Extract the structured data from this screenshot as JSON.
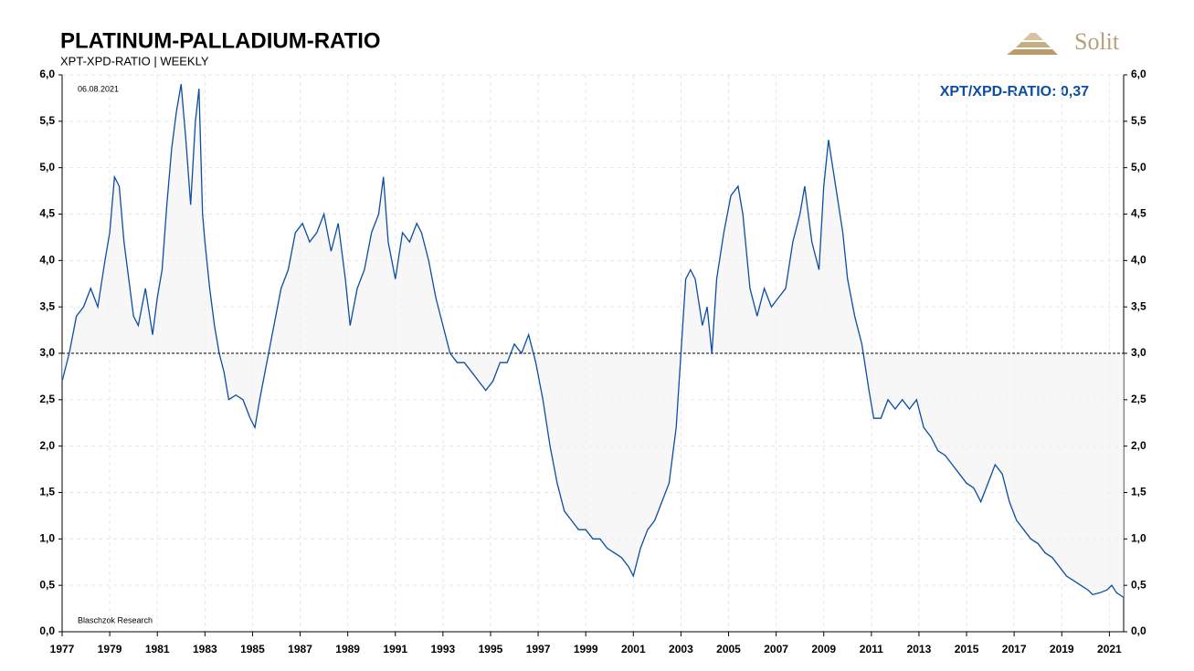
{
  "chart_data": {
    "type": "line",
    "title": "PLATINUM-PALLADIUM-RATIO",
    "subtitle": "XPT-XPD-RATIO | WEEKLY",
    "date_note": "06.08.2021",
    "source": "Blaschzok  Research",
    "last_value_label": "XPT/XPD-RATIO: 0,37",
    "logo": "Solit",
    "reference_line": 3,
    "color": "#0b4ea2",
    "grid": true,
    "xlim": [
      1977,
      2021.6
    ],
    "xticks": [
      1977,
      1979,
      1981,
      1983,
      1985,
      1987,
      1989,
      1991,
      1993,
      1995,
      1997,
      1999,
      2001,
      2003,
      2005,
      2007,
      2009,
      2011,
      2013,
      2015,
      2017,
      2019,
      2021
    ],
    "ylim": [
      0,
      6
    ],
    "yticks": [
      {
        "value": 0,
        "label": "0,0"
      },
      {
        "value": 0.5,
        "label": "0,5"
      },
      {
        "value": 1,
        "label": "1,0"
      },
      {
        "value": 1.5,
        "label": "1,5"
      },
      {
        "value": 2,
        "label": "2,0"
      },
      {
        "value": 2.5,
        "label": "2,5"
      },
      {
        "value": 3,
        "label": "3,0"
      },
      {
        "value": 3.5,
        "label": "3,5"
      },
      {
        "value": 4,
        "label": "4,0"
      },
      {
        "value": 4.5,
        "label": "4,5"
      },
      {
        "value": 5,
        "label": "5,0"
      },
      {
        "value": 5.5,
        "label": "5,5"
      },
      {
        "value": 6,
        "label": "6,0"
      }
    ],
    "x": [
      1977.0,
      1977.3,
      1977.6,
      1977.9,
      1978.2,
      1978.5,
      1978.8,
      1979.0,
      1979.2,
      1979.4,
      1979.6,
      1979.8,
      1980.0,
      1980.2,
      1980.5,
      1980.8,
      1981.0,
      1981.2,
      1981.4,
      1981.6,
      1981.8,
      1982.0,
      1982.2,
      1982.4,
      1982.6,
      1982.75,
      1982.9,
      1983.0,
      1983.2,
      1983.4,
      1983.6,
      1983.8,
      1984.0,
      1984.3,
      1984.6,
      1984.9,
      1985.1,
      1985.3,
      1985.6,
      1985.9,
      1986.2,
      1986.5,
      1986.8,
      1987.1,
      1987.4,
      1987.7,
      1988.0,
      1988.3,
      1988.6,
      1988.9,
      1989.1,
      1989.4,
      1989.7,
      1990.0,
      1990.3,
      1990.5,
      1990.7,
      1991.0,
      1991.3,
      1991.6,
      1991.9,
      1992.1,
      1992.4,
      1992.7,
      1993.0,
      1993.3,
      1993.6,
      1993.9,
      1994.2,
      1994.5,
      1994.8,
      1995.1,
      1995.4,
      1995.7,
      1996.0,
      1996.3,
      1996.6,
      1996.9,
      1997.2,
      1997.5,
      1997.8,
      1998.1,
      1998.4,
      1998.7,
      1999.0,
      1999.3,
      1999.6,
      1999.9,
      2000.2,
      2000.5,
      2000.8,
      2001.0,
      2001.3,
      2001.6,
      2001.9,
      2002.2,
      2002.5,
      2002.8,
      2003.0,
      2003.2,
      2003.4,
      2003.6,
      2003.9,
      2004.1,
      2004.3,
      2004.5,
      2004.8,
      2005.1,
      2005.4,
      2005.6,
      2005.9,
      2006.2,
      2006.5,
      2006.8,
      2007.1,
      2007.4,
      2007.7,
      2008.0,
      2008.2,
      2008.5,
      2008.8,
      2009.0,
      2009.2,
      2009.5,
      2009.8,
      2010.0,
      2010.3,
      2010.6,
      2010.9,
      2011.1,
      2011.4,
      2011.7,
      2012.0,
      2012.3,
      2012.6,
      2012.9,
      2013.2,
      2013.5,
      2013.8,
      2014.1,
      2014.4,
      2014.7,
      2015.0,
      2015.3,
      2015.6,
      2015.9,
      2016.2,
      2016.5,
      2016.8,
      2017.1,
      2017.4,
      2017.7,
      2018.0,
      2018.3,
      2018.6,
      2018.9,
      2019.2,
      2019.5,
      2019.8,
      2020.1,
      2020.3,
      2020.6,
      2020.9,
      2021.1,
      2021.3,
      2021.6
    ],
    "series": [
      {
        "name": "XPT/XPD-RATIO",
        "color": "#0b4ea2",
        "values": [
          2.7,
          3.0,
          3.4,
          3.5,
          3.7,
          3.5,
          4.0,
          4.3,
          4.9,
          4.8,
          4.2,
          3.8,
          3.4,
          3.3,
          3.7,
          3.2,
          3.6,
          3.9,
          4.6,
          5.2,
          5.6,
          5.9,
          5.3,
          4.6,
          5.5,
          5.85,
          4.5,
          4.2,
          3.7,
          3.3,
          3.0,
          2.8,
          2.5,
          2.55,
          2.5,
          2.3,
          2.2,
          2.5,
          2.9,
          3.3,
          3.7,
          3.9,
          4.3,
          4.4,
          4.2,
          4.3,
          4.5,
          4.1,
          4.4,
          3.8,
          3.3,
          3.7,
          3.9,
          4.3,
          4.5,
          4.9,
          4.2,
          3.8,
          4.3,
          4.2,
          4.4,
          4.3,
          4.0,
          3.6,
          3.3,
          3.0,
          2.9,
          2.9,
          2.8,
          2.7,
          2.6,
          2.7,
          2.9,
          2.9,
          3.1,
          3.0,
          3.2,
          2.9,
          2.5,
          2.0,
          1.6,
          1.3,
          1.2,
          1.1,
          1.1,
          1.0,
          1.0,
          0.9,
          0.85,
          0.8,
          0.7,
          0.6,
          0.9,
          1.1,
          1.2,
          1.4,
          1.6,
          2.2,
          3.0,
          3.8,
          3.9,
          3.8,
          3.3,
          3.5,
          3.0,
          3.8,
          4.3,
          4.7,
          4.8,
          4.5,
          3.7,
          3.4,
          3.7,
          3.5,
          3.6,
          3.7,
          4.2,
          4.5,
          4.8,
          4.2,
          3.9,
          4.8,
          5.3,
          4.8,
          4.3,
          3.8,
          3.4,
          3.1,
          2.6,
          2.3,
          2.3,
          2.5,
          2.4,
          2.5,
          2.4,
          2.5,
          2.2,
          2.1,
          1.95,
          1.9,
          1.8,
          1.7,
          1.6,
          1.55,
          1.4,
          1.6,
          1.8,
          1.7,
          1.4,
          1.2,
          1.1,
          1.0,
          0.95,
          0.85,
          0.8,
          0.7,
          0.6,
          0.55,
          0.5,
          0.45,
          0.4,
          0.42,
          0.45,
          0.5,
          0.42,
          0.37
        ]
      }
    ]
  }
}
